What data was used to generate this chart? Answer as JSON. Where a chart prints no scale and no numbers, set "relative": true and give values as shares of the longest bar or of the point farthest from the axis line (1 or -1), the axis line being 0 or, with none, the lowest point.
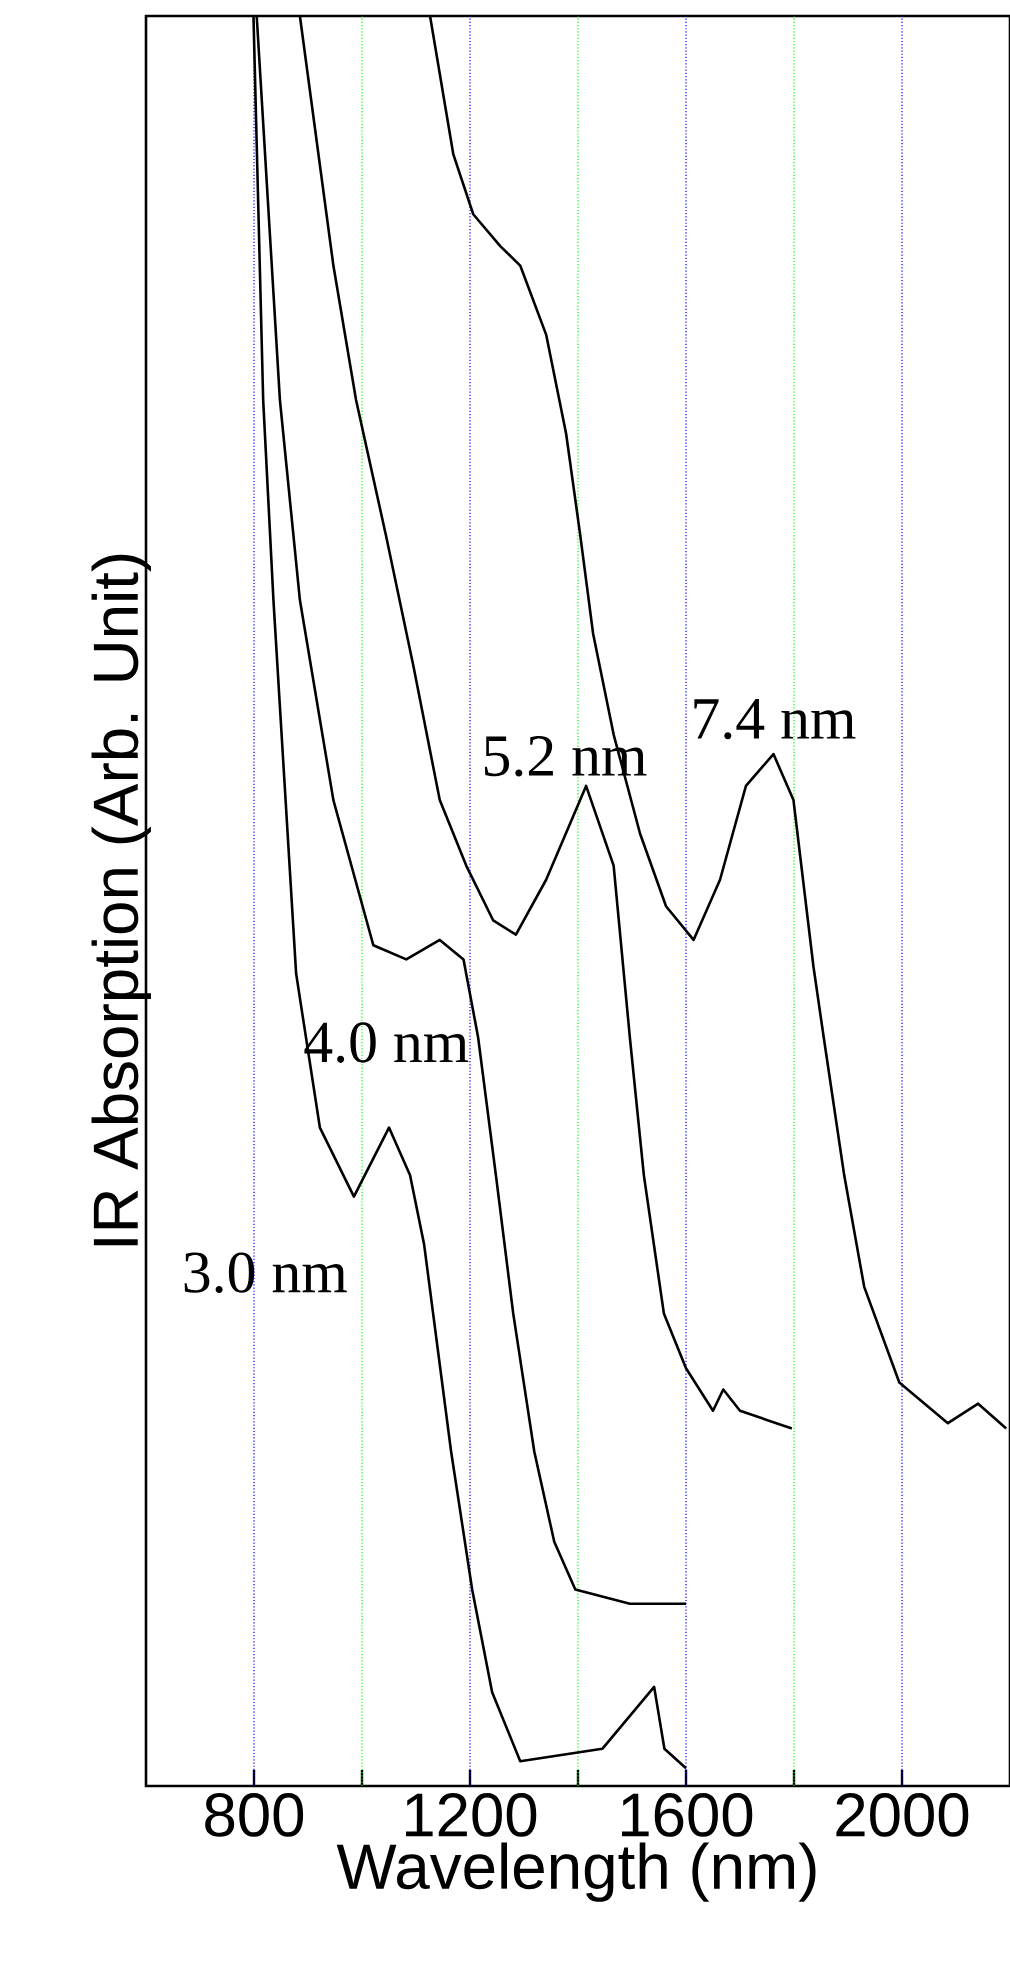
{
  "chart_data": {
    "type": "line",
    "xlabel": "Wavelength (nm)",
    "ylabel": "IR Absorption (Arb. Unit)",
    "relative": true,
    "marker": "none",
    "xlim": [
      600,
      2200
    ],
    "xticks": [
      800,
      {
        "value": 1000,
        "label": null
      },
      1200,
      {
        "value": 1400,
        "label": null
      },
      1600,
      {
        "value": 1800,
        "label": null
      },
      2000
    ],
    "ref_lines": [
      {
        "axis": "x",
        "value": 800,
        "color": "#0000ff",
        "line_style": "dotted"
      },
      {
        "axis": "x",
        "value": 1000,
        "color": "#00ff00",
        "line_style": "dotted"
      },
      {
        "axis": "x",
        "value": 1200,
        "color": "#0000ff",
        "line_style": "dotted"
      },
      {
        "axis": "x",
        "value": 1400,
        "color": "#00ff00",
        "line_style": "dotted"
      },
      {
        "axis": "x",
        "value": 1600,
        "color": "#0000ff",
        "line_style": "dotted"
      },
      {
        "axis": "x",
        "value": 1800,
        "color": "#00ff00",
        "line_style": "dotted"
      },
      {
        "axis": "x",
        "value": 2000,
        "color": "#0000ff",
        "line_style": "dotted"
      }
    ],
    "series": [
      {
        "name": "3.0 nm",
        "color": "#000000",
        "x": [
          799,
          817,
          836,
          878,
          922,
          985,
          1050,
          1089,
          1115,
          1165,
          1204,
          1241,
          1293,
          1445,
          1541,
          1560,
          1600
        ],
        "values": [
          1,
          0.783,
          0.67,
          0.459,
          0.372,
          0.333,
          0.372,
          0.345,
          0.306,
          0.189,
          0.111,
          0.053,
          0.014,
          0.021,
          0.056,
          0.021,
          0.01
        ]
      },
      {
        "name": "4.0 nm",
        "color": "#000000",
        "x": [
          805,
          848,
          885,
          947,
          1021,
          1082,
          1144,
          1188,
          1215,
          1248,
          1280,
          1319,
          1356,
          1395,
          1496,
          1600
        ],
        "values": [
          1,
          0.783,
          0.67,
          0.557,
          0.475,
          0.467,
          0.478,
          0.467,
          0.423,
          0.345,
          0.267,
          0.189,
          0.138,
          0.111,
          0.103,
          0.103
        ]
      },
      {
        "name": "5.2 nm",
        "color": "#000000",
        "x": [
          885,
          947,
          989,
          1044,
          1095,
          1144,
          1193,
          1243,
          1285,
          1341,
          1415,
          1466,
          1496,
          1522,
          1559,
          1600,
          1650,
          1669,
          1700,
          1796
        ],
        "values": [
          1,
          0.859,
          0.783,
          0.707,
          0.633,
          0.557,
          0.52,
          0.489,
          0.481,
          0.512,
          0.565,
          0.52,
          0.423,
          0.345,
          0.267,
          0.236,
          0.212,
          0.224,
          0.212,
          0.202
        ]
      },
      {
        "name": "7.4 nm",
        "color": "#000000",
        "x": [
          1126,
          1169,
          1206,
          1256,
          1293,
          1341,
          1378,
          1404,
          1428,
          1466,
          1515,
          1563,
          1614,
          1663,
          1711,
          1762,
          1799,
          1836,
          1855,
          1893,
          1930,
          1995,
          2085,
          2141,
          2193
        ],
        "values": [
          1,
          0.922,
          0.888,
          0.87,
          0.859,
          0.82,
          0.764,
          0.707,
          0.651,
          0.594,
          0.538,
          0.497,
          0.478,
          0.512,
          0.565,
          0.583,
          0.557,
          0.463,
          0.423,
          0.345,
          0.282,
          0.228,
          0.205,
          0.216,
          0.202
        ]
      }
    ]
  }
}
